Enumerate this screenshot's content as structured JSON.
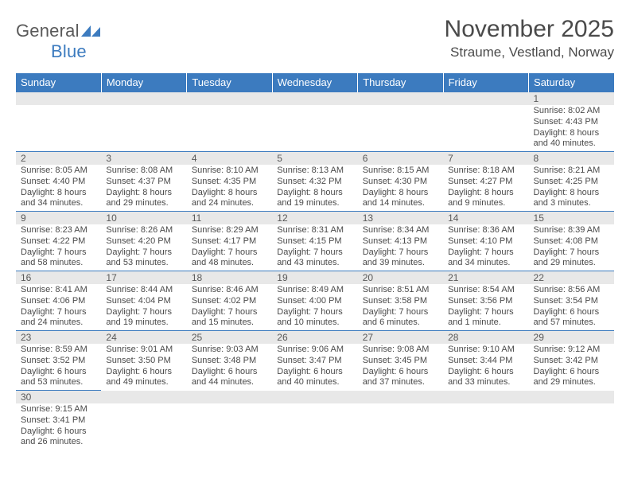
{
  "logo": {
    "text1": "General",
    "text2": "Blue",
    "mark_color": "#3c7bbf"
  },
  "title": "November 2025",
  "location": "Straume, Vestland, Norway",
  "day_headers": [
    "Sunday",
    "Monday",
    "Tuesday",
    "Wednesday",
    "Thursday",
    "Friday",
    "Saturday"
  ],
  "colors": {
    "header_bg": "#3c7bbf",
    "header_text": "#ffffff",
    "daynum_bg": "#e8e8e8",
    "border": "#3c7bbf",
    "body_text": "#4a4a4a"
  },
  "weeks": [
    [
      {
        "n": "",
        "sr": "",
        "ss": "",
        "dl": ""
      },
      {
        "n": "",
        "sr": "",
        "ss": "",
        "dl": ""
      },
      {
        "n": "",
        "sr": "",
        "ss": "",
        "dl": ""
      },
      {
        "n": "",
        "sr": "",
        "ss": "",
        "dl": ""
      },
      {
        "n": "",
        "sr": "",
        "ss": "",
        "dl": ""
      },
      {
        "n": "",
        "sr": "",
        "ss": "",
        "dl": ""
      },
      {
        "n": "1",
        "sr": "Sunrise: 8:02 AM",
        "ss": "Sunset: 4:43 PM",
        "dl": "Daylight: 8 hours and 40 minutes."
      }
    ],
    [
      {
        "n": "2",
        "sr": "Sunrise: 8:05 AM",
        "ss": "Sunset: 4:40 PM",
        "dl": "Daylight: 8 hours and 34 minutes."
      },
      {
        "n": "3",
        "sr": "Sunrise: 8:08 AM",
        "ss": "Sunset: 4:37 PM",
        "dl": "Daylight: 8 hours and 29 minutes."
      },
      {
        "n": "4",
        "sr": "Sunrise: 8:10 AM",
        "ss": "Sunset: 4:35 PM",
        "dl": "Daylight: 8 hours and 24 minutes."
      },
      {
        "n": "5",
        "sr": "Sunrise: 8:13 AM",
        "ss": "Sunset: 4:32 PM",
        "dl": "Daylight: 8 hours and 19 minutes."
      },
      {
        "n": "6",
        "sr": "Sunrise: 8:15 AM",
        "ss": "Sunset: 4:30 PM",
        "dl": "Daylight: 8 hours and 14 minutes."
      },
      {
        "n": "7",
        "sr": "Sunrise: 8:18 AM",
        "ss": "Sunset: 4:27 PM",
        "dl": "Daylight: 8 hours and 9 minutes."
      },
      {
        "n": "8",
        "sr": "Sunrise: 8:21 AM",
        "ss": "Sunset: 4:25 PM",
        "dl": "Daylight: 8 hours and 3 minutes."
      }
    ],
    [
      {
        "n": "9",
        "sr": "Sunrise: 8:23 AM",
        "ss": "Sunset: 4:22 PM",
        "dl": "Daylight: 7 hours and 58 minutes."
      },
      {
        "n": "10",
        "sr": "Sunrise: 8:26 AM",
        "ss": "Sunset: 4:20 PM",
        "dl": "Daylight: 7 hours and 53 minutes."
      },
      {
        "n": "11",
        "sr": "Sunrise: 8:29 AM",
        "ss": "Sunset: 4:17 PM",
        "dl": "Daylight: 7 hours and 48 minutes."
      },
      {
        "n": "12",
        "sr": "Sunrise: 8:31 AM",
        "ss": "Sunset: 4:15 PM",
        "dl": "Daylight: 7 hours and 43 minutes."
      },
      {
        "n": "13",
        "sr": "Sunrise: 8:34 AM",
        "ss": "Sunset: 4:13 PM",
        "dl": "Daylight: 7 hours and 39 minutes."
      },
      {
        "n": "14",
        "sr": "Sunrise: 8:36 AM",
        "ss": "Sunset: 4:10 PM",
        "dl": "Daylight: 7 hours and 34 minutes."
      },
      {
        "n": "15",
        "sr": "Sunrise: 8:39 AM",
        "ss": "Sunset: 4:08 PM",
        "dl": "Daylight: 7 hours and 29 minutes."
      }
    ],
    [
      {
        "n": "16",
        "sr": "Sunrise: 8:41 AM",
        "ss": "Sunset: 4:06 PM",
        "dl": "Daylight: 7 hours and 24 minutes."
      },
      {
        "n": "17",
        "sr": "Sunrise: 8:44 AM",
        "ss": "Sunset: 4:04 PM",
        "dl": "Daylight: 7 hours and 19 minutes."
      },
      {
        "n": "18",
        "sr": "Sunrise: 8:46 AM",
        "ss": "Sunset: 4:02 PM",
        "dl": "Daylight: 7 hours and 15 minutes."
      },
      {
        "n": "19",
        "sr": "Sunrise: 8:49 AM",
        "ss": "Sunset: 4:00 PM",
        "dl": "Daylight: 7 hours and 10 minutes."
      },
      {
        "n": "20",
        "sr": "Sunrise: 8:51 AM",
        "ss": "Sunset: 3:58 PM",
        "dl": "Daylight: 7 hours and 6 minutes."
      },
      {
        "n": "21",
        "sr": "Sunrise: 8:54 AM",
        "ss": "Sunset: 3:56 PM",
        "dl": "Daylight: 7 hours and 1 minute."
      },
      {
        "n": "22",
        "sr": "Sunrise: 8:56 AM",
        "ss": "Sunset: 3:54 PM",
        "dl": "Daylight: 6 hours and 57 minutes."
      }
    ],
    [
      {
        "n": "23",
        "sr": "Sunrise: 8:59 AM",
        "ss": "Sunset: 3:52 PM",
        "dl": "Daylight: 6 hours and 53 minutes."
      },
      {
        "n": "24",
        "sr": "Sunrise: 9:01 AM",
        "ss": "Sunset: 3:50 PM",
        "dl": "Daylight: 6 hours and 49 minutes."
      },
      {
        "n": "25",
        "sr": "Sunrise: 9:03 AM",
        "ss": "Sunset: 3:48 PM",
        "dl": "Daylight: 6 hours and 44 minutes."
      },
      {
        "n": "26",
        "sr": "Sunrise: 9:06 AM",
        "ss": "Sunset: 3:47 PM",
        "dl": "Daylight: 6 hours and 40 minutes."
      },
      {
        "n": "27",
        "sr": "Sunrise: 9:08 AM",
        "ss": "Sunset: 3:45 PM",
        "dl": "Daylight: 6 hours and 37 minutes."
      },
      {
        "n": "28",
        "sr": "Sunrise: 9:10 AM",
        "ss": "Sunset: 3:44 PM",
        "dl": "Daylight: 6 hours and 33 minutes."
      },
      {
        "n": "29",
        "sr": "Sunrise: 9:12 AM",
        "ss": "Sunset: 3:42 PM",
        "dl": "Daylight: 6 hours and 29 minutes."
      }
    ],
    [
      {
        "n": "30",
        "sr": "Sunrise: 9:15 AM",
        "ss": "Sunset: 3:41 PM",
        "dl": "Daylight: 6 hours and 26 minutes."
      },
      {
        "n": "",
        "sr": "",
        "ss": "",
        "dl": ""
      },
      {
        "n": "",
        "sr": "",
        "ss": "",
        "dl": ""
      },
      {
        "n": "",
        "sr": "",
        "ss": "",
        "dl": ""
      },
      {
        "n": "",
        "sr": "",
        "ss": "",
        "dl": ""
      },
      {
        "n": "",
        "sr": "",
        "ss": "",
        "dl": ""
      },
      {
        "n": "",
        "sr": "",
        "ss": "",
        "dl": ""
      }
    ]
  ]
}
